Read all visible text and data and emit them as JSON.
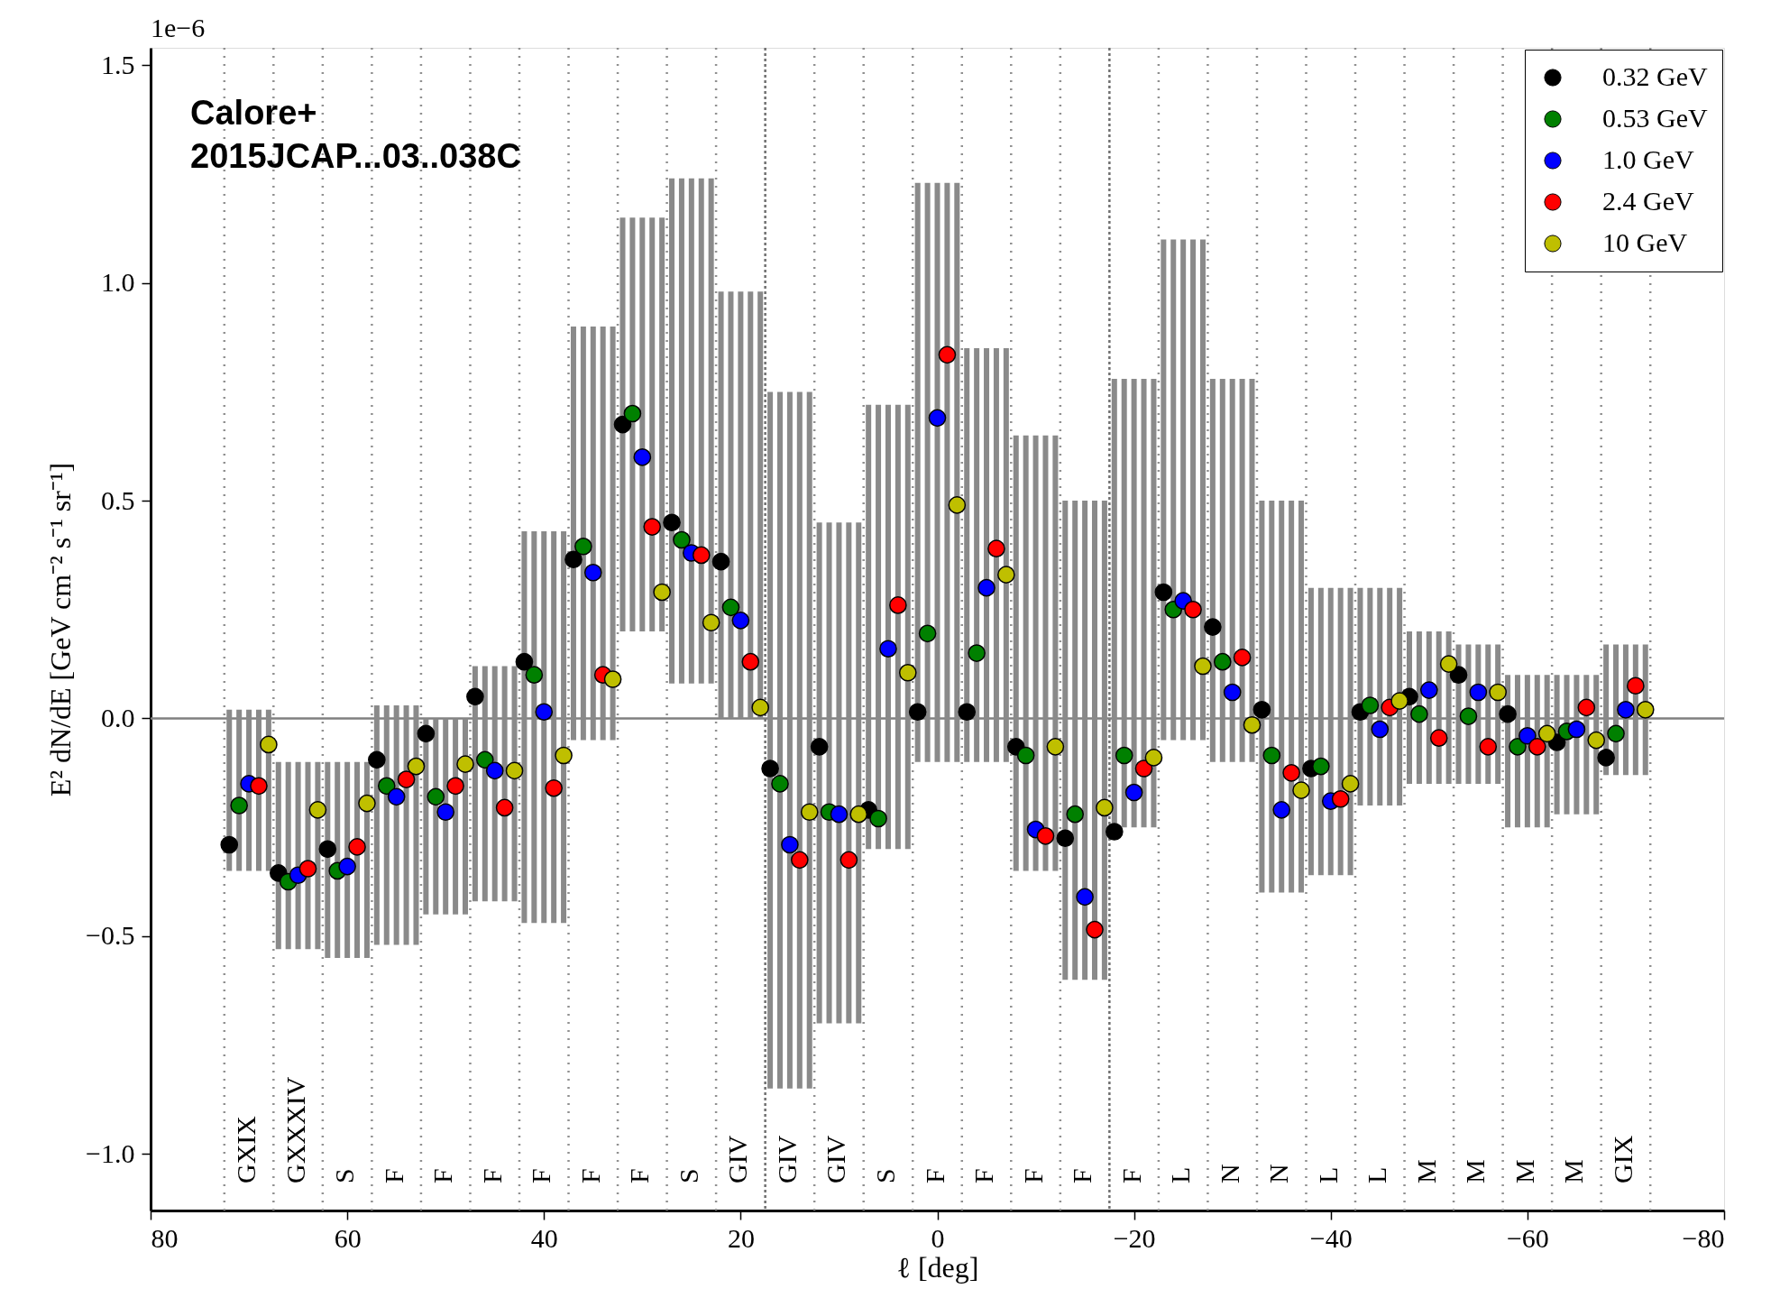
{
  "chart_data": {
    "type": "scatter",
    "xlabel": "ℓ [deg]",
    "ylabel": "E² dN/dE [GeV cm⁻² s⁻¹ sr⁻¹]",
    "xlim": [
      80,
      -80
    ],
    "xticks": [
      80,
      60,
      40,
      20,
      0,
      {
        "value": -20,
        "label": "−20"
      },
      {
        "value": -40,
        "label": "−40"
      },
      {
        "value": -60,
        "label": "−60"
      },
      {
        "value": -80,
        "label": "−80"
      }
    ],
    "ylim": [
      -1.13,
      1.54
    ],
    "yticks": [
      {
        "value": -1.0,
        "label": "−1.0"
      },
      {
        "value": -0.5,
        "label": "−0.5"
      },
      {
        "value": 0,
        "label": "0.0"
      },
      {
        "value": 0.5,
        "label": "0.5"
      },
      {
        "value": 1.0,
        "label": "1.0"
      },
      {
        "value": 1.5,
        "label": "1.5"
      }
    ],
    "grid": false,
    "legend": "top right",
    "marker": "circle",
    "series": [
      {
        "name": "0.32 GeV",
        "color": "#000000",
        "x": [
          72,
          67,
          62,
          57,
          52,
          47,
          42,
          37,
          32,
          27,
          22,
          17,
          12,
          7,
          2,
          -3,
          -8,
          -13,
          -18,
          -23,
          -28,
          -33,
          -38,
          -43,
          -48,
          -53,
          -58,
          -63,
          -68
        ],
        "values": [
          -0.29,
          -0.355,
          -0.3,
          -0.095,
          -0.035,
          0.05,
          0.13,
          0.365,
          0.675,
          0.45,
          0.36,
          -0.115,
          -0.065,
          -0.21,
          0.015,
          0.015,
          -0.065,
          -0.275,
          -0.26,
          0.29,
          0.21,
          0.02,
          -0.115,
          0.015,
          0.05,
          0.1,
          0.01,
          -0.055,
          -0.09
        ],
        "errors": [
          [
            -0.35,
            0.02
          ],
          [
            -0.53,
            -0.1
          ],
          [
            -0.55,
            -0.1
          ],
          [
            -0.52,
            0.03
          ],
          [
            -0.45,
            0.0
          ],
          [
            -0.42,
            0.12
          ],
          [
            -0.47,
            0.43
          ],
          [
            -0.05,
            0.9
          ],
          [
            0.2,
            1.15
          ],
          [
            0.08,
            1.24
          ],
          [
            0.0,
            0.98
          ],
          [
            -0.85,
            0.75
          ],
          [
            -0.7,
            0.45
          ],
          [
            -0.3,
            0.72
          ],
          [
            -0.1,
            1.23
          ],
          [
            -0.1,
            0.85
          ],
          [
            -0.35,
            0.65
          ],
          [
            -0.6,
            0.5
          ],
          [
            -0.25,
            0.78
          ],
          [
            -0.05,
            1.1
          ],
          [
            -0.1,
            0.78
          ],
          [
            -0.4,
            0.5
          ],
          [
            -0.36,
            0.3
          ],
          [
            -0.2,
            0.3
          ],
          [
            -0.15,
            0.2
          ],
          [
            -0.15,
            0.17
          ],
          [
            -0.25,
            0.1
          ],
          [
            -0.22,
            0.1
          ],
          [
            -0.13,
            0.17
          ]
        ]
      },
      {
        "name": "0.53 GeV",
        "color": "#008000",
        "x": [
          71,
          66,
          61,
          56,
          51,
          46,
          41,
          36,
          31,
          26,
          21,
          16,
          11,
          6,
          1,
          -4,
          -9,
          -14,
          -19,
          -24,
          -29,
          -34,
          -39,
          -44,
          -49,
          -54,
          -59,
          -64,
          -69
        ],
        "values": [
          -0.2,
          -0.375,
          -0.35,
          -0.155,
          -0.18,
          -0.095,
          0.1,
          0.395,
          0.7,
          0.41,
          0.255,
          -0.15,
          -0.215,
          -0.23,
          0.195,
          0.15,
          -0.085,
          -0.22,
          -0.085,
          0.25,
          0.13,
          -0.085,
          -0.11,
          0.03,
          0.01,
          0.005,
          -0.065,
          -0.03,
          -0.035
        ],
        "errors": [
          [
            -0.35,
            0.02
          ],
          [
            -0.53,
            -0.1
          ],
          [
            -0.55,
            -0.1
          ],
          [
            -0.52,
            0.03
          ],
          [
            -0.45,
            0.0
          ],
          [
            -0.42,
            0.12
          ],
          [
            -0.47,
            0.43
          ],
          [
            -0.05,
            0.9
          ],
          [
            0.2,
            1.15
          ],
          [
            0.08,
            1.24
          ],
          [
            0.0,
            0.98
          ],
          [
            -0.85,
            0.75
          ],
          [
            -0.7,
            0.45
          ],
          [
            -0.3,
            0.72
          ],
          [
            -0.1,
            1.23
          ],
          [
            -0.1,
            0.85
          ],
          [
            -0.35,
            0.65
          ],
          [
            -0.6,
            0.5
          ],
          [
            -0.25,
            0.78
          ],
          [
            -0.05,
            1.1
          ],
          [
            -0.1,
            0.78
          ],
          [
            -0.4,
            0.5
          ],
          [
            -0.36,
            0.3
          ],
          [
            -0.2,
            0.3
          ],
          [
            -0.15,
            0.2
          ],
          [
            -0.15,
            0.17
          ],
          [
            -0.25,
            0.1
          ],
          [
            -0.22,
            0.1
          ],
          [
            -0.13,
            0.17
          ]
        ]
      },
      {
        "name": "1.0 GeV",
        "color": "#0000ff",
        "x": [
          70,
          65,
          60,
          55,
          50,
          45,
          40,
          35,
          30,
          25,
          20,
          15,
          10,
          5,
          0,
          -5,
          -10,
          -15,
          -20,
          -25,
          -30,
          -35,
          -40,
          -45,
          -50,
          -55,
          -60,
          -65,
          -70
        ],
        "values": [
          -0.15,
          -0.36,
          -0.34,
          -0.18,
          -0.215,
          -0.12,
          0.015,
          0.335,
          0.6,
          0.38,
          0.225,
          -0.29,
          -0.22,
          0.16,
          0.69,
          0.3,
          -0.255,
          -0.41,
          -0.17,
          0.27,
          0.06,
          -0.21,
          -0.19,
          -0.025,
          0.065,
          0.06,
          -0.04,
          -0.025,
          0.02
        ],
        "errors": [
          [
            -0.35,
            0.02
          ],
          [
            -0.53,
            -0.1
          ],
          [
            -0.55,
            -0.1
          ],
          [
            -0.52,
            0.03
          ],
          [
            -0.45,
            0.0
          ],
          [
            -0.42,
            0.12
          ],
          [
            -0.47,
            0.43
          ],
          [
            -0.05,
            0.9
          ],
          [
            0.2,
            1.15
          ],
          [
            0.08,
            1.24
          ],
          [
            0.0,
            0.98
          ],
          [
            -0.85,
            0.75
          ],
          [
            -0.7,
            0.45
          ],
          [
            -0.3,
            0.72
          ],
          [
            -0.1,
            1.23
          ],
          [
            -0.1,
            0.85
          ],
          [
            -0.35,
            0.65
          ],
          [
            -0.6,
            0.5
          ],
          [
            -0.25,
            0.78
          ],
          [
            -0.05,
            1.1
          ],
          [
            -0.1,
            0.78
          ],
          [
            -0.4,
            0.5
          ],
          [
            -0.36,
            0.3
          ],
          [
            -0.2,
            0.3
          ],
          [
            -0.15,
            0.2
          ],
          [
            -0.15,
            0.17
          ],
          [
            -0.25,
            0.1
          ],
          [
            -0.22,
            0.1
          ],
          [
            -0.13,
            0.17
          ]
        ]
      },
      {
        "name": "2.4 GeV",
        "color": "#ff0000",
        "x": [
          69,
          64,
          59,
          54,
          49,
          44,
          39,
          34,
          29,
          24,
          19,
          14,
          9,
          4,
          -1,
          -6,
          -11,
          -16,
          -21,
          -26,
          -31,
          -36,
          -41,
          -46,
          -51,
          -56,
          -61,
          -66,
          -71
        ],
        "values": [
          -0.155,
          -0.345,
          -0.295,
          -0.14,
          -0.155,
          -0.205,
          -0.16,
          0.1,
          0.44,
          0.375,
          0.13,
          -0.325,
          -0.325,
          0.26,
          0.835,
          0.39,
          -0.27,
          -0.485,
          -0.115,
          0.25,
          0.14,
          -0.125,
          -0.185,
          0.025,
          -0.045,
          -0.065,
          -0.065,
          0.025,
          0.075
        ],
        "errors": [
          [
            -0.35,
            0.02
          ],
          [
            -0.53,
            -0.1
          ],
          [
            -0.55,
            -0.1
          ],
          [
            -0.52,
            0.03
          ],
          [
            -0.45,
            0.0
          ],
          [
            -0.42,
            0.12
          ],
          [
            -0.47,
            0.43
          ],
          [
            -0.05,
            0.9
          ],
          [
            0.2,
            1.15
          ],
          [
            0.08,
            1.24
          ],
          [
            0.0,
            0.98
          ],
          [
            -0.85,
            0.75
          ],
          [
            -0.7,
            0.45
          ],
          [
            -0.3,
            0.72
          ],
          [
            -0.1,
            1.23
          ],
          [
            -0.1,
            0.85
          ],
          [
            -0.35,
            0.65
          ],
          [
            -0.6,
            0.5
          ],
          [
            -0.25,
            0.78
          ],
          [
            -0.05,
            1.1
          ],
          [
            -0.1,
            0.78
          ],
          [
            -0.4,
            0.5
          ],
          [
            -0.36,
            0.3
          ],
          [
            -0.2,
            0.3
          ],
          [
            -0.15,
            0.2
          ],
          [
            -0.15,
            0.17
          ],
          [
            -0.25,
            0.1
          ],
          [
            -0.22,
            0.1
          ],
          [
            -0.13,
            0.17
          ]
        ]
      },
      {
        "name": "10 GeV",
        "color": "#bfbf00",
        "x": [
          68,
          63,
          58,
          53,
          48,
          43,
          38,
          33,
          28,
          23,
          18,
          13,
          8,
          3,
          -2,
          -7,
          -12,
          -17,
          -22,
          -27,
          -32,
          -37,
          -42,
          -47,
          -52,
          -57,
          -62,
          -67,
          -72
        ],
        "values": [
          -0.06,
          -0.21,
          -0.195,
          -0.11,
          -0.105,
          -0.12,
          -0.085,
          0.09,
          0.29,
          0.22,
          0.025,
          -0.215,
          -0.22,
          0.105,
          0.49,
          0.33,
          -0.065,
          -0.205,
          -0.09,
          0.12,
          -0.015,
          -0.165,
          -0.15,
          0.04,
          0.125,
          0.06,
          -0.035,
          -0.05,
          0.02
        ],
        "errors": [
          [
            -0.35,
            0.02
          ],
          [
            -0.53,
            -0.1
          ],
          [
            -0.55,
            -0.1
          ],
          [
            -0.52,
            0.03
          ],
          [
            -0.45,
            0.0
          ],
          [
            -0.42,
            0.12
          ],
          [
            -0.47,
            0.43
          ],
          [
            -0.05,
            0.9
          ],
          [
            0.2,
            1.15
          ],
          [
            0.08,
            1.24
          ],
          [
            0.0,
            0.98
          ],
          [
            -0.85,
            0.75
          ],
          [
            -0.7,
            0.45
          ],
          [
            -0.3,
            0.72
          ],
          [
            -0.1,
            1.23
          ],
          [
            -0.1,
            0.85
          ],
          [
            -0.35,
            0.65
          ],
          [
            -0.6,
            0.5
          ],
          [
            -0.25,
            0.78
          ],
          [
            -0.05,
            1.1
          ],
          [
            -0.1,
            0.78
          ],
          [
            -0.4,
            0.5
          ],
          [
            -0.36,
            0.3
          ],
          [
            -0.2,
            0.3
          ],
          [
            -0.15,
            0.2
          ],
          [
            -0.15,
            0.17
          ],
          [
            -0.25,
            0.1
          ],
          [
            -0.22,
            0.1
          ],
          [
            -0.13,
            0.17
          ]
        ]
      }
    ],
    "ref_lines": [
      {
        "axis": "y",
        "value": 0,
        "color": "#808080",
        "line_style": "solid"
      },
      {
        "axis": "x",
        "value": 72.5,
        "color": "#909090",
        "line_style": "dotted"
      },
      {
        "axis": "x",
        "value": 67.5,
        "color": "#909090",
        "line_style": "dotted"
      },
      {
        "axis": "x",
        "value": 62.5,
        "color": "#909090",
        "line_style": "dotted"
      },
      {
        "axis": "x",
        "value": 57.5,
        "color": "#909090",
        "line_style": "dotted"
      },
      {
        "axis": "x",
        "value": 52.5,
        "color": "#909090",
        "line_style": "dotted"
      },
      {
        "axis": "x",
        "value": 47.5,
        "color": "#909090",
        "line_style": "dotted"
      },
      {
        "axis": "x",
        "value": 42.5,
        "color": "#909090",
        "line_style": "dotted"
      },
      {
        "axis": "x",
        "value": 37.5,
        "color": "#909090",
        "line_style": "dotted"
      },
      {
        "axis": "x",
        "value": 32.5,
        "color": "#909090",
        "line_style": "dotted"
      },
      {
        "axis": "x",
        "value": 27.5,
        "color": "#909090",
        "line_style": "dotted"
      },
      {
        "axis": "x",
        "value": 22.5,
        "color": "#909090",
        "line_style": "dotted"
      },
      {
        "axis": "x",
        "value": 17.5,
        "color": "#707070",
        "line_style": "dashed"
      },
      {
        "axis": "x",
        "value": 12.5,
        "color": "#909090",
        "line_style": "dotted"
      },
      {
        "axis": "x",
        "value": 7.5,
        "color": "#909090",
        "line_style": "dotted"
      },
      {
        "axis": "x",
        "value": 2.5,
        "color": "#909090",
        "line_style": "dotted"
      },
      {
        "axis": "x",
        "value": -2.5,
        "color": "#909090",
        "line_style": "dotted"
      },
      {
        "axis": "x",
        "value": -7.5,
        "color": "#909090",
        "line_style": "dotted"
      },
      {
        "axis": "x",
        "value": -12.5,
        "color": "#909090",
        "line_style": "dotted"
      },
      {
        "axis": "x",
        "value": -17.5,
        "color": "#707070",
        "line_style": "dashed"
      },
      {
        "axis": "x",
        "value": -22.5,
        "color": "#909090",
        "line_style": "dotted"
      },
      {
        "axis": "x",
        "value": -27.5,
        "color": "#909090",
        "line_style": "dotted"
      },
      {
        "axis": "x",
        "value": -32.5,
        "color": "#909090",
        "line_style": "dotted"
      },
      {
        "axis": "x",
        "value": -37.5,
        "color": "#909090",
        "line_style": "dotted"
      },
      {
        "axis": "x",
        "value": -42.5,
        "color": "#909090",
        "line_style": "dotted"
      },
      {
        "axis": "x",
        "value": -47.5,
        "color": "#909090",
        "line_style": "dotted"
      },
      {
        "axis": "x",
        "value": -52.5,
        "color": "#909090",
        "line_style": "dotted"
      },
      {
        "axis": "x",
        "value": -57.5,
        "color": "#909090",
        "line_style": "dotted"
      },
      {
        "axis": "x",
        "value": -62.5,
        "color": "#909090",
        "line_style": "dotted"
      },
      {
        "axis": "x",
        "value": -67.5,
        "color": "#909090",
        "line_style": "dotted"
      },
      {
        "axis": "x",
        "value": -72.5,
        "color": "#909090",
        "line_style": "dotted"
      }
    ],
    "annotations": [
      "1e−6",
      "Calore+\n2015JCAP...03..038C",
      "GXIX",
      "GXXXIV",
      "S",
      "F",
      "F",
      "F",
      "F",
      "F",
      "F",
      "S",
      "GIV",
      "GIV",
      "GIV",
      "S",
      "F",
      "F",
      "F",
      "F",
      "F",
      "L",
      "N",
      "N",
      "L",
      "L",
      "M",
      "M",
      "M",
      "M",
      "GIX"
    ]
  }
}
